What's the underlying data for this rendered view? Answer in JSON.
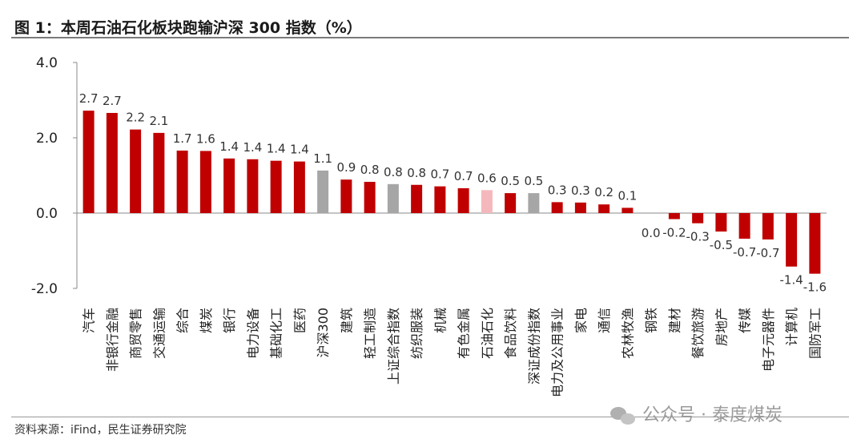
{
  "header": {
    "title": "图 1：本周石油石化板块跑输沪深 300 指数（%）"
  },
  "footer": {
    "source": "资料来源：iFind，民生证券研究院"
  },
  "watermark": {
    "text": "公众号 · 泰度煤炭",
    "icon": "wechat-icon"
  },
  "colors": {
    "bar_default": "#C00000",
    "bar_index": "#A6A6A6",
    "bar_highlight": "#F4B8BC"
  },
  "chart_data": {
    "type": "bar",
    "title": "图 1：本周石油石化板块跑输沪深 300 指数（%）",
    "xlabel": "",
    "ylabel": "",
    "ylim": [
      -2.0,
      4.0
    ],
    "yticks": [
      "4.0",
      "2.0",
      "0.0",
      "-2.0"
    ],
    "grid": false,
    "categories": [
      "汽车",
      "非银行金融",
      "商贸零售",
      "交通运输",
      "综合",
      "煤炭",
      "银行",
      "电力设备",
      "基础化工",
      "医药",
      "沪深300",
      "建筑",
      "轻工制造",
      "上证综合指数",
      "纺织服装",
      "机械",
      "有色金属",
      "石油石化",
      "食品饮料",
      "深证成份指数",
      "电力及公用事业",
      "家电",
      "通信",
      "农林牧渔",
      "钢铁",
      "建材",
      "餐饮旅游",
      "房地产",
      "传媒",
      "电子元器件",
      "计算机",
      "国防军工"
    ],
    "values": [
      2.72,
      2.66,
      2.22,
      2.13,
      1.66,
      1.65,
      1.45,
      1.43,
      1.39,
      1.37,
      1.13,
      0.89,
      0.83,
      0.77,
      0.75,
      0.71,
      0.66,
      0.61,
      0.53,
      0.53,
      0.29,
      0.28,
      0.23,
      0.14,
      0.0,
      -0.16,
      -0.27,
      -0.49,
      -0.68,
      -0.7,
      -1.42,
      -1.61
    ],
    "data_labels": [
      "2.7",
      "2.7",
      "2.2",
      "2.1",
      "1.7",
      "1.6",
      "1.4",
      "1.4",
      "1.4",
      "1.4",
      "1.1",
      "0.9",
      "0.8",
      "0.8",
      "0.8",
      "0.7",
      "0.7",
      "0.6",
      "0.5",
      "0.5",
      "0.3",
      "0.3",
      "0.2",
      "0.1",
      "0.0",
      "-0.2",
      "-0.3",
      "-0.5",
      "-0.7",
      "-0.7",
      "-1.4",
      "-1.6"
    ],
    "bar_kinds": [
      "sector",
      "sector",
      "sector",
      "sector",
      "sector",
      "sector",
      "sector",
      "sector",
      "sector",
      "sector",
      "index",
      "sector",
      "sector",
      "index",
      "sector",
      "sector",
      "sector",
      "highlight",
      "sector",
      "index",
      "sector",
      "sector",
      "sector",
      "sector",
      "sector",
      "sector",
      "sector",
      "sector",
      "sector",
      "sector",
      "sector",
      "sector"
    ]
  }
}
